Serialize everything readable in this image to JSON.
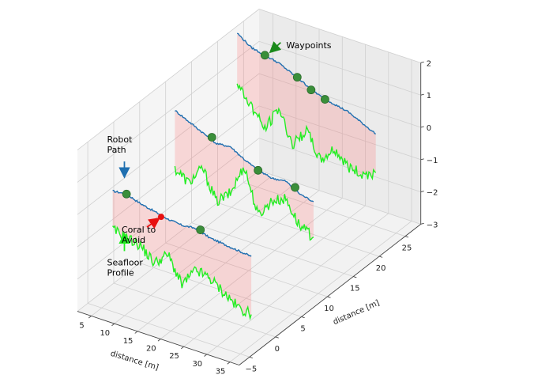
{
  "chart_data": {
    "type": "line",
    "projection": "3d",
    "title": "",
    "xlabel": "distance [m]",
    "ylabel": "distance [m]",
    "zlabel": "",
    "xlim": [
      2,
      37
    ],
    "ylim": [
      -7,
      28
    ],
    "zlim": [
      -3,
      2
    ],
    "x_ticks": [
      "5",
      "10",
      "15",
      "20",
      "25",
      "30",
      "35"
    ],
    "y_ticks": [
      "−5",
      "0",
      "5",
      "10",
      "15",
      "20",
      "25"
    ],
    "z_ticks": [
      "−3",
      "−2",
      "−1",
      "0",
      "1",
      "2"
    ],
    "grid": true,
    "colors": {
      "robot_path": "#1f6fb0",
      "seafloor": "#22ee22",
      "fill": "#ff6b6b",
      "waypoint": "#3a8f3a",
      "arrow_green": "#1a8a1a",
      "arrow_blue": "#1f6fb0",
      "arrow_lime": "#22ee22",
      "arrow_red": "#e81010"
    },
    "series": [
      {
        "role": "robot-path",
        "profiles": [
          {
            "y": -2,
            "x": [
              4,
              7,
              10,
              13,
              16,
              19,
              22,
              25,
              28,
              31,
              34
            ],
            "z": [
              0.2,
              0.25,
              0.1,
              0.0,
              -0.1,
              -0.15,
              -0.1,
              -0.25,
              -0.3,
              -0.35,
              -0.4
            ]
          },
          {
            "y": 10,
            "x": [
              4,
              7,
              10,
              13,
              16,
              19,
              22,
              25,
              28,
              31,
              34
            ],
            "z": [
              1.2,
              1.0,
              0.8,
              0.6,
              0.65,
              0.4,
              0.2,
              0.1,
              0.15,
              -0.1,
              -0.2
            ]
          },
          {
            "y": 22,
            "x": [
              4,
              7,
              10,
              13,
              16,
              19,
              22,
              25,
              28,
              31,
              34
            ],
            "z": [
              2.1,
              1.8,
              1.7,
              1.6,
              1.4,
              1.2,
              1.0,
              0.9,
              0.8,
              0.6,
              0.4
            ]
          }
        ]
      },
      {
        "role": "seafloor",
        "profiles": [
          {
            "y": -2,
            "x": [
              4,
              7,
              10,
              13,
              16,
              19,
              22,
              25,
              28,
              31,
              34
            ],
            "z": [
              -1.0,
              -1.1,
              -1.2,
              -1.6,
              -1.2,
              -2.0,
              -1.4,
              -1.5,
              -1.8,
              -2.1,
              -2.2
            ]
          },
          {
            "y": 10,
            "x": [
              4,
              7,
              10,
              13,
              16,
              19,
              22,
              25,
              28,
              31,
              34
            ],
            "z": [
              -0.6,
              -0.9,
              -0.3,
              -1.2,
              -0.8,
              0.2,
              -1.2,
              -0.6,
              -0.4,
              -1.1,
              -1.3
            ]
          },
          {
            "y": 22,
            "x": [
              4,
              7,
              10,
              13,
              16,
              19,
              22,
              25,
              28,
              31,
              34
            ],
            "z": [
              0.5,
              0.0,
              -0.6,
              0.2,
              -0.8,
              -0.2,
              -1.0,
              -0.5,
              -0.9,
              -1.0,
              -0.8
            ]
          }
        ]
      }
    ],
    "waypoints": [
      {
        "x": 7,
        "y": -2,
        "z": 0.25
      },
      {
        "x": 23,
        "y": -2,
        "z": -0.1
      },
      {
        "x": 12,
        "y": 10,
        "z": 0.75
      },
      {
        "x": 22,
        "y": 10,
        "z": 0.2
      },
      {
        "x": 30,
        "y": 10,
        "z": 0.05
      },
      {
        "x": 10,
        "y": 22,
        "z": 1.7
      },
      {
        "x": 17,
        "y": 22,
        "z": 1.35
      },
      {
        "x": 20,
        "y": 22,
        "z": 1.1
      },
      {
        "x": 23,
        "y": 22,
        "z": 0.95
      }
    ],
    "coral": {
      "x": 14.5,
      "y": -2,
      "z": -0.1
    },
    "annotations": [
      {
        "key": "waypoints",
        "text": [
          "Waypoints"
        ]
      },
      {
        "key": "robot_path",
        "text": [
          "Robot",
          "Path"
        ]
      },
      {
        "key": "seafloor",
        "text": [
          "Seafloor",
          "Profile"
        ]
      },
      {
        "key": "coral",
        "text": [
          "Coral to",
          "Avoid"
        ]
      }
    ]
  }
}
